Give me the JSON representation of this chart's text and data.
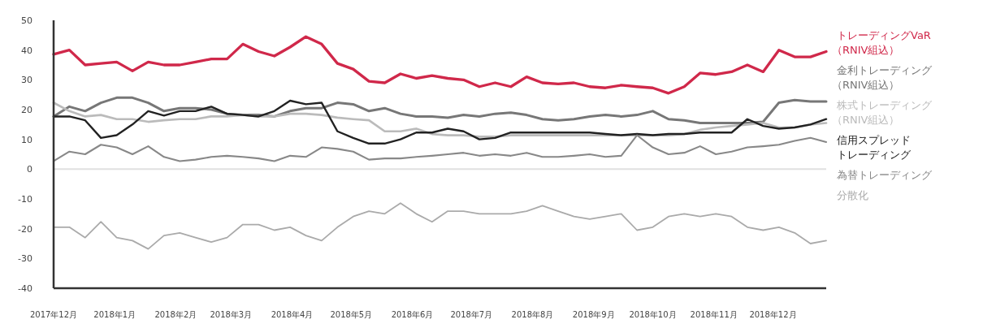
{
  "chart_data": {
    "type": "line",
    "x": [
      "2017-12-01",
      "2017-12-09",
      "2017-12-17",
      "2017-12-25",
      "2018-01-02",
      "2018-01-10",
      "2018-01-18",
      "2018-01-26",
      "2018-02-03",
      "2018-02-11",
      "2018-02-19",
      "2018-02-27",
      "2018-03-07",
      "2018-03-15",
      "2018-03-23",
      "2018-03-31",
      "2018-04-08",
      "2018-04-16",
      "2018-04-24",
      "2018-05-02",
      "2018-05-10",
      "2018-05-18",
      "2018-05-26",
      "2018-06-03",
      "2018-06-11",
      "2018-06-19",
      "2018-06-27",
      "2018-07-05",
      "2018-07-13",
      "2018-07-21",
      "2018-07-29",
      "2018-08-06",
      "2018-08-14",
      "2018-08-22",
      "2018-08-30",
      "2018-09-07",
      "2018-09-15",
      "2018-09-23",
      "2018-10-01",
      "2018-10-09",
      "2018-10-17",
      "2018-10-25",
      "2018-11-02",
      "2018-11-10",
      "2018-11-18",
      "2018-11-26",
      "2018-12-04",
      "2018-12-12",
      "2018-12-20",
      "2018-12-28"
    ],
    "series": [
      {
        "name": "トレーディングVaR（RNIV組込）",
        "color": "#d0284a",
        "values": [
          38.6,
          40,
          35,
          35.5,
          36,
          33,
          36,
          35,
          35,
          36,
          37,
          37,
          42,
          39.5,
          38,
          41,
          44.5,
          42,
          35.5,
          33.6,
          29.5,
          29,
          32,
          30.5,
          31.4,
          30.5,
          30,
          27.7,
          29,
          27.7,
          31,
          29,
          28.6,
          29,
          27.7,
          27.3,
          28.2,
          27.7,
          27.3,
          25.5,
          27.7,
          32.3,
          31.8,
          32.7,
          35,
          32.7,
          40,
          37.7,
          37.7,
          39.5
        ]
      },
      {
        "name": "金利トレーディング（RNIV組込）",
        "color": "#777777",
        "values": [
          17.7,
          21,
          19.5,
          22.3,
          24,
          24,
          22.3,
          19.5,
          20.5,
          20.5,
          20,
          18.6,
          18.2,
          18.2,
          17.7,
          19.5,
          20.5,
          20.5,
          22.3,
          21.8,
          19.5,
          20.5,
          18.6,
          17.7,
          17.7,
          17.3,
          18.2,
          17.7,
          18.6,
          19,
          18.2,
          16.8,
          16.4,
          16.8,
          17.7,
          18.2,
          17.7,
          18.2,
          19.5,
          16.8,
          16.4,
          15.5,
          15.5,
          15.5,
          15.5,
          15.9,
          22.3,
          23.2,
          22.7,
          22.7
        ]
      },
      {
        "name": "株式トレーディング（RNIV組込）",
        "color": "#bbbbbb",
        "values": [
          22.3,
          19.5,
          17.7,
          18.2,
          16.8,
          16.8,
          15.9,
          16.4,
          16.8,
          16.8,
          17.7,
          17.7,
          18.2,
          17.7,
          17.7,
          18.6,
          18.6,
          18.2,
          17.3,
          16.8,
          16.4,
          12.7,
          12.7,
          13.6,
          11.8,
          11.4,
          11.4,
          10.9,
          10.9,
          11.4,
          11.4,
          11.4,
          11.4,
          11.4,
          11.4,
          11.4,
          11.4,
          11.4,
          11.4,
          11.4,
          11.8,
          13.2,
          14,
          14.5,
          15,
          15.5,
          14,
          14,
          15,
          15.5
        ]
      },
      {
        "name": "信用スプレッドトレーディング",
        "color": "#222222",
        "values": [
          17.7,
          17.7,
          16.4,
          10.5,
          11.4,
          15,
          19.5,
          18,
          19.5,
          19.5,
          21,
          18.6,
          18.2,
          17.7,
          19.5,
          23,
          21.8,
          22.3,
          12.7,
          10.5,
          8.6,
          8.6,
          10,
          12.3,
          12.3,
          13.6,
          12.7,
          10,
          10.5,
          12.3,
          12.3,
          12.3,
          12.3,
          12.3,
          12.3,
          11.8,
          11.4,
          11.8,
          11.4,
          11.8,
          11.8,
          12.3,
          12.3,
          12.3,
          16.8,
          14.5,
          13.6,
          14,
          15,
          16.8
        ]
      },
      {
        "name": "為替トレーディング",
        "color": "#888888",
        "values": [
          2.7,
          5.9,
          5,
          8.2,
          7.3,
          5,
          7.7,
          4.1,
          2.7,
          3.2,
          4.1,
          4.5,
          4.1,
          3.6,
          2.7,
          4.5,
          4.1,
          7.3,
          6.8,
          5.9,
          3.2,
          3.6,
          3.6,
          4.1,
          4.5,
          5,
          5.5,
          4.5,
          5,
          4.5,
          5.5,
          4.1,
          4.1,
          4.5,
          5,
          4.1,
          4.5,
          11.4,
          7.3,
          5,
          5.5,
          7.7,
          5,
          5.9,
          7.3,
          7.7,
          8.2,
          9.5,
          10.5,
          9.1
        ]
      },
      {
        "name": "分散化",
        "color": "#aaaaaa",
        "values": [
          -19.5,
          -19.5,
          -23,
          -17.7,
          -23,
          -24,
          -26.8,
          -22.3,
          -21.4,
          -23,
          -24.5,
          -23,
          -18.6,
          -18.6,
          -20.5,
          -19.5,
          -22.3,
          -24,
          -19.5,
          -15.9,
          -14.1,
          -15,
          -11.4,
          -15,
          -17.7,
          -14.1,
          -14.1,
          -15,
          -15,
          -15,
          -14.1,
          -12.3,
          -14.1,
          -15.9,
          -16.8,
          -15.9,
          -15,
          -20.5,
          -19.5,
          -15.9,
          -15,
          -15.9,
          -15,
          -15.9,
          -19.5,
          -20.5,
          -19.5,
          -21.4,
          -25,
          -24
        ]
      }
    ],
    "xlim": [
      "2017-12-01",
      "2018-12-28"
    ],
    "xticks": [
      {
        "value": "2017-12-01",
        "label": "2017年12月"
      },
      {
        "value": "2018-01-01",
        "label": "2018年1月"
      },
      {
        "value": "2018-02-01",
        "label": "2018年2月"
      },
      {
        "value": "2018-03-01",
        "label": "2018年3月"
      },
      {
        "value": "2018-04-01",
        "label": "2018年4月"
      },
      {
        "value": "2018-05-01",
        "label": "2018年5月"
      },
      {
        "value": "2018-06-01",
        "label": "2018年6月"
      },
      {
        "value": "2018-07-01",
        "label": "2018年7月"
      },
      {
        "value": "2018-08-01",
        "label": "2018年8月"
      },
      {
        "value": "2018-09-01",
        "label": "2018年9月"
      },
      {
        "value": "2018-10-01",
        "label": "2018年10月"
      },
      {
        "value": "2018-11-01",
        "label": "2018年11月"
      },
      {
        "value": "2018-12-01",
        "label": "2018年12月"
      }
    ],
    "ylim": [
      -40,
      50
    ],
    "yticks": [
      -40,
      -30,
      -20,
      -10,
      0,
      10,
      20,
      30,
      40,
      50
    ],
    "ref_lines": [
      {
        "axis": "y",
        "value": 0,
        "color": "#e0e0e0"
      }
    ],
    "legend": "right",
    "grid": false
  }
}
